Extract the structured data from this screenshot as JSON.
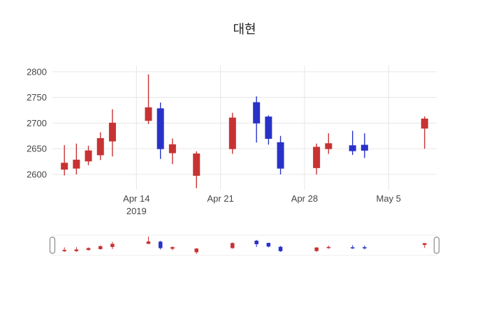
{
  "title": "대현",
  "chart_data": {
    "type": "candlestick",
    "title": "대현",
    "xlabel": "",
    "ylabel": "",
    "xlim": [
      "2019-04-07",
      "2019-05-09"
    ],
    "ylim": [
      2570,
      2812
    ],
    "y_ticks": [
      2600,
      2650,
      2700,
      2750,
      2800
    ],
    "x_ticks": [
      {
        "label": "Apr 14",
        "sublabel": "2019",
        "date": "2019-04-14"
      },
      {
        "label": "Apr 21",
        "sublabel": "",
        "date": "2019-04-21"
      },
      {
        "label": "Apr 28",
        "sublabel": "",
        "date": "2019-04-28"
      },
      {
        "label": "May 5",
        "sublabel": "",
        "date": "2019-05-05"
      }
    ],
    "increasing_color": "#c83232",
    "decreasing_color": "#2832c8",
    "grid_color": "#e6e6e6",
    "text_color": "#444444",
    "legend": "none",
    "grid": true,
    "rangeslider": true,
    "candles": [
      {
        "date": "2019-04-08",
        "open": 2610,
        "high": 2657,
        "low": 2598,
        "close": 2622
      },
      {
        "date": "2019-04-09",
        "open": 2612,
        "high": 2660,
        "low": 2600,
        "close": 2628
      },
      {
        "date": "2019-04-10",
        "open": 2626,
        "high": 2656,
        "low": 2618,
        "close": 2646
      },
      {
        "date": "2019-04-11",
        "open": 2638,
        "high": 2682,
        "low": 2628,
        "close": 2670
      },
      {
        "date": "2019-04-12",
        "open": 2665,
        "high": 2727,
        "low": 2635,
        "close": 2700
      },
      {
        "date": "2019-04-15",
        "open": 2705,
        "high": 2795,
        "low": 2698,
        "close": 2730
      },
      {
        "date": "2019-04-16",
        "open": 2728,
        "high": 2740,
        "low": 2630,
        "close": 2650
      },
      {
        "date": "2019-04-17",
        "open": 2642,
        "high": 2670,
        "low": 2620,
        "close": 2658
      },
      {
        "date": "2019-04-19",
        "open": 2598,
        "high": 2645,
        "low": 2573,
        "close": 2640
      },
      {
        "date": "2019-04-22",
        "open": 2650,
        "high": 2720,
        "low": 2640,
        "close": 2710
      },
      {
        "date": "2019-04-24",
        "open": 2740,
        "high": 2752,
        "low": 2662,
        "close": 2700
      },
      {
        "date": "2019-04-25",
        "open": 2712,
        "high": 2715,
        "low": 2658,
        "close": 2670
      },
      {
        "date": "2019-04-26",
        "open": 2662,
        "high": 2675,
        "low": 2600,
        "close": 2612
      },
      {
        "date": "2019-04-29",
        "open": 2613,
        "high": 2660,
        "low": 2600,
        "close": 2653
      },
      {
        "date": "2019-04-30",
        "open": 2650,
        "high": 2680,
        "low": 2640,
        "close": 2660
      },
      {
        "date": "2019-05-02",
        "open": 2656,
        "high": 2685,
        "low": 2638,
        "close": 2646
      },
      {
        "date": "2019-05-03",
        "open": 2657,
        "high": 2680,
        "low": 2632,
        "close": 2647
      },
      {
        "date": "2019-05-08",
        "open": 2690,
        "high": 2713,
        "low": 2650,
        "close": 2708
      }
    ]
  }
}
